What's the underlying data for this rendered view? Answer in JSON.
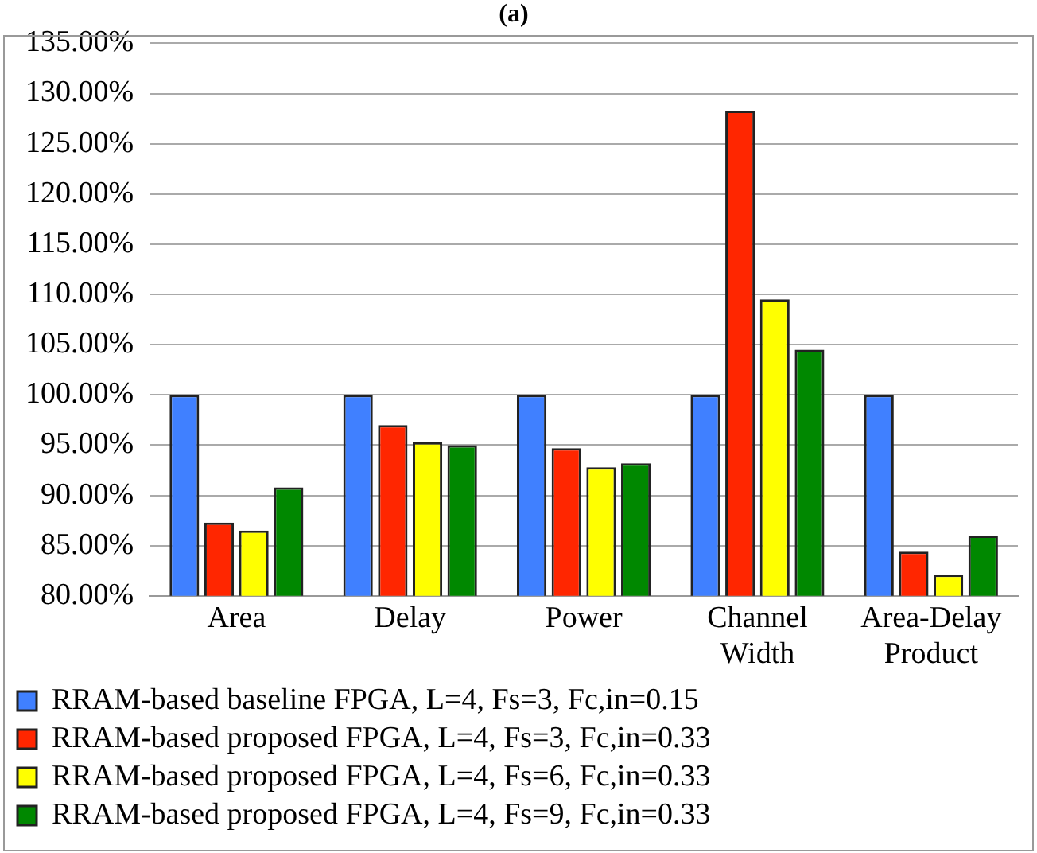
{
  "chart_data": {
    "type": "bar",
    "title": "(a)",
    "categories": [
      "Area",
      "Delay",
      "Power",
      "Channel Width",
      "Area-Delay Product"
    ],
    "series": [
      {
        "name": "RRAM-based baseline FPGA, L=4, Fs=3, Fc,in=0.15",
        "color": "#4080ff",
        "values": [
          100,
          100,
          100,
          100,
          100
        ]
      },
      {
        "name": "RRAM-based proposed FPGA, L=4, Fs=3, Fc,in=0.33",
        "color": "#ff2600",
        "values": [
          87.3,
          97.0,
          94.7,
          128.3,
          84.4
        ]
      },
      {
        "name": "RRAM-based proposed FPGA, L=4, Fs=6, Fc,in=0.33",
        "color": "#ffff00",
        "values": [
          86.5,
          95.3,
          92.8,
          109.5,
          82.1
        ]
      },
      {
        "name": "RRAM-based proposed FPGA, L=4, Fs=9, Fc,in=0.33",
        "color": "#008800",
        "values": [
          90.8,
          95.0,
          93.2,
          104.5,
          86.0
        ]
      }
    ],
    "ylim": [
      80,
      135
    ],
    "yticks": [
      {
        "value": 80,
        "label": "80.00%"
      },
      {
        "value": 85,
        "label": "85.00%"
      },
      {
        "value": 90,
        "label": "90.00%"
      },
      {
        "value": 95,
        "label": "95.00%"
      },
      {
        "value": 100,
        "label": "100.00%"
      },
      {
        "value": 105,
        "label": "105.00%"
      },
      {
        "value": 110,
        "label": "110.00%"
      },
      {
        "value": 115,
        "label": "115.00%"
      },
      {
        "value": 120,
        "label": "120.00%"
      },
      {
        "value": 125,
        "label": "125.00%"
      },
      {
        "value": 130,
        "label": "130.00%"
      },
      {
        "value": 135,
        "label": "135.00%"
      }
    ],
    "grid": "y",
    "legend": "bottom"
  }
}
